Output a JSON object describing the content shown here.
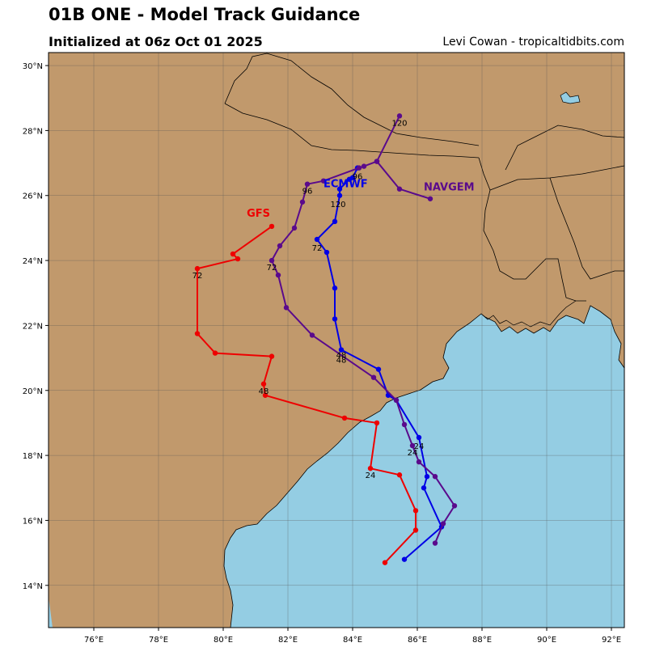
{
  "header": {
    "title": "01B ONE - Model Track Guidance",
    "subtitle": "Initialized at 06z Oct 01 2025",
    "credit": "Levi Cowan - tropicaltidbits.com"
  },
  "map": {
    "lon_range": [
      74.6,
      92.4
    ],
    "lat_range": [
      12.7,
      30.4
    ],
    "lon_ticks": [
      76,
      78,
      80,
      82,
      84,
      86,
      88,
      90,
      92
    ],
    "lat_ticks": [
      14,
      16,
      18,
      20,
      22,
      24,
      26,
      28,
      30
    ],
    "lon_tick_labels": [
      "76°E",
      "78°E",
      "80°E",
      "82°E",
      "84°E",
      "86°E",
      "88°E",
      "90°E",
      "92°E"
    ],
    "lat_tick_labels": [
      "14°N",
      "16°N",
      "18°N",
      "20°N",
      "22°N",
      "24°N",
      "26°N",
      "28°N",
      "30°N"
    ],
    "colors": {
      "land": "#c1996c",
      "ocean": "#94cde3",
      "grid": "#555555",
      "coast": "#000000"
    }
  },
  "chart_data": {
    "type": "scatter",
    "title": "01B ONE - Model Track Guidance",
    "series": [
      {
        "name": "GFS",
        "color": "#ee0000",
        "points": [
          [
            85.0,
            14.7
          ],
          [
            85.95,
            15.7
          ],
          [
            85.95,
            16.3
          ],
          [
            85.45,
            17.4
          ],
          [
            84.55,
            17.6
          ],
          [
            84.75,
            19.0
          ],
          [
            83.75,
            19.15
          ],
          [
            81.3,
            19.85
          ],
          [
            81.25,
            20.2
          ],
          [
            81.5,
            21.05
          ],
          [
            79.75,
            21.15
          ],
          [
            79.2,
            21.75
          ],
          [
            79.2,
            23.75
          ],
          [
            80.45,
            24.05
          ],
          [
            80.3,
            24.2
          ],
          [
            81.5,
            25.05
          ]
        ],
        "hour_labels": [
          {
            "text": "24",
            "lon": 84.55,
            "lat": 17.3
          },
          {
            "text": "48",
            "lon": 81.25,
            "lat": 19.9
          },
          {
            "text": "72",
            "lon": 79.2,
            "lat": 23.45
          }
        ]
      },
      {
        "name": "ECMWF",
        "color": "#0000e6",
        "points": [
          [
            85.6,
            14.8
          ],
          [
            86.75,
            15.8
          ],
          [
            86.2,
            17.0
          ],
          [
            86.3,
            17.35
          ],
          [
            86.05,
            18.55
          ],
          [
            85.35,
            19.7
          ],
          [
            85.1,
            19.85
          ],
          [
            84.8,
            20.65
          ],
          [
            83.65,
            21.25
          ],
          [
            83.45,
            22.2
          ],
          [
            83.45,
            23.15
          ],
          [
            83.2,
            24.25
          ],
          [
            82.9,
            24.65
          ],
          [
            83.45,
            25.2
          ],
          [
            83.6,
            26.0
          ],
          [
            83.6,
            26.2
          ],
          [
            83.9,
            26.5
          ],
          [
            84.0,
            26.55
          ],
          [
            84.15,
            26.85
          ]
        ],
        "hour_labels": [
          {
            "text": "24",
            "lon": 86.05,
            "lat": 18.2
          },
          {
            "text": "48",
            "lon": 83.65,
            "lat": 21.0
          },
          {
            "text": "72",
            "lon": 82.9,
            "lat": 24.3
          },
          {
            "text": "96",
            "lon": 84.15,
            "lat": 26.5
          },
          {
            "text": "120",
            "lon": 83.55,
            "lat": 25.65
          }
        ],
        "model_label": {
          "text": "ECMWF",
          "lon": 83.1,
          "lat": 26.25
        }
      },
      {
        "name": "NAVGEM",
        "color": "#5a0a8c",
        "points": [
          [
            86.55,
            15.3
          ],
          [
            86.8,
            15.9
          ],
          [
            87.15,
            16.45
          ],
          [
            86.55,
            17.35
          ],
          [
            86.05,
            17.8
          ],
          [
            85.85,
            18.3
          ],
          [
            85.6,
            18.95
          ],
          [
            85.35,
            19.7
          ],
          [
            84.65,
            20.4
          ],
          [
            82.75,
            21.7
          ],
          [
            81.95,
            22.55
          ],
          [
            81.7,
            23.55
          ],
          [
            81.5,
            24.0
          ],
          [
            81.75,
            24.45
          ],
          [
            82.2,
            25.0
          ],
          [
            82.45,
            25.8
          ],
          [
            82.6,
            26.35
          ],
          [
            83.1,
            26.45
          ],
          [
            84.2,
            26.85
          ],
          [
            84.35,
            26.9
          ],
          [
            84.75,
            27.05
          ],
          [
            85.45,
            28.45
          ],
          [
            84.75,
            27.05
          ],
          [
            85.45,
            26.2
          ],
          [
            86.4,
            25.9
          ]
        ],
        "hour_labels": [
          {
            "text": "24",
            "lon": 85.85,
            "lat": 18.0
          },
          {
            "text": "48",
            "lon": 83.65,
            "lat": 20.85
          },
          {
            "text": "72",
            "lon": 81.5,
            "lat": 23.7
          },
          {
            "text": "96",
            "lon": 82.6,
            "lat": 26.05
          },
          {
            "text": "120",
            "lon": 85.45,
            "lat": 28.15
          }
        ],
        "model_label": {
          "text": "NAVGEM",
          "lon": 86.2,
          "lat": 26.15
        }
      }
    ],
    "model_label_gfs": {
      "text": "GFS",
      "lon": 81.45,
      "lat": 25.35
    },
    "xlim": [
      74.6,
      92.4
    ],
    "ylim": [
      12.7,
      30.4
    ]
  }
}
